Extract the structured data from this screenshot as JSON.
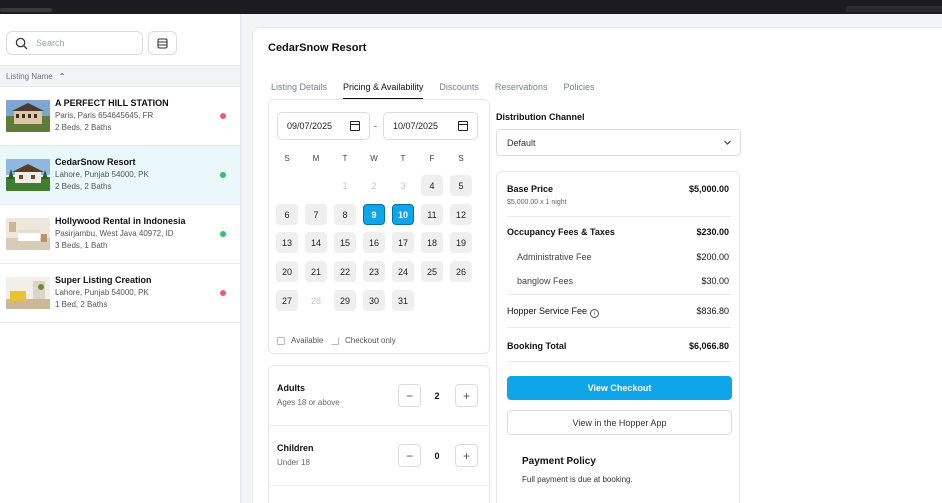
{
  "search": {
    "placeholder": "Search"
  },
  "list": {
    "header": "Listing Name",
    "items": [
      {
        "title": "A PERFECT HILL STATION",
        "address": "Paris, Paris 654645645, FR",
        "details": "2 Beds, 2 Baths",
        "status_color": "#ee5a6f"
      },
      {
        "title": "CedarSnow Resort",
        "address": "Lahore, Punjab 54000, PK",
        "details": "2 Beds, 2 Baths",
        "status_color": "#35c26a"
      },
      {
        "title": "Hollywood Rental in Indonesia",
        "address": "Pasirjambu, West Java 40972, ID",
        "details": "3 Beds, 1 Bath",
        "status_color": "#35c26a"
      },
      {
        "title": "Super Listing Creation",
        "address": "Lahore, Punjab 54000, PK",
        "details": "1 Bed, 2 Baths",
        "status_color": "#ee5a6f"
      }
    ]
  },
  "main": {
    "title": "CedarSnow Resort",
    "tabs": [
      "Listing Details",
      "Pricing & Availability",
      "Discounts",
      "Reservations",
      "Policies"
    ],
    "active_tab": "Pricing & Availability"
  },
  "calendar": {
    "check_in": "09/07/2025",
    "check_out": "10/07/2025",
    "separator": "-",
    "weekdays": [
      "S",
      "M",
      "T",
      "W",
      "T",
      "F",
      "S"
    ],
    "disabled_days": [
      "1",
      "2",
      "3",
      "28"
    ],
    "selected_days": [
      "9",
      "10"
    ],
    "legend_available": "Available",
    "legend_checkout": "Checkout only"
  },
  "guests": {
    "adults_label": "Adults",
    "adults_sub": "Ages 18 or above",
    "adults_value": "2",
    "children_label": "Children",
    "children_sub": "Under 18",
    "children_value": "0",
    "minus": "−",
    "plus": "+"
  },
  "distribution": {
    "label": "Distribution Channel",
    "value": "Default"
  },
  "pricing": {
    "base_label": "Base Price",
    "base_value": "$5,000.00",
    "base_sub": "$5,000.00 x 1 night",
    "fees_label": "Occupancy Fees & Taxes",
    "fees_value": "$230.00",
    "admin_label": "Administrative Fee",
    "admin_value": "$200.00",
    "banglow_label": "banglow Fees",
    "banglow_value": "$30.00",
    "service_label": "Hopper Service Fee",
    "service_value": "$836.80",
    "total_label": "Booking Total",
    "total_value": "$6,066.80",
    "view_checkout": "View Checkout",
    "view_app": "View in the Hopper App",
    "policy_title": "Payment Policy",
    "policy_text": "Full payment is due at booking."
  },
  "colors": {
    "accent": "#0ea5e9",
    "status_red": "#ee5a6f",
    "status_green": "#35c26a"
  }
}
